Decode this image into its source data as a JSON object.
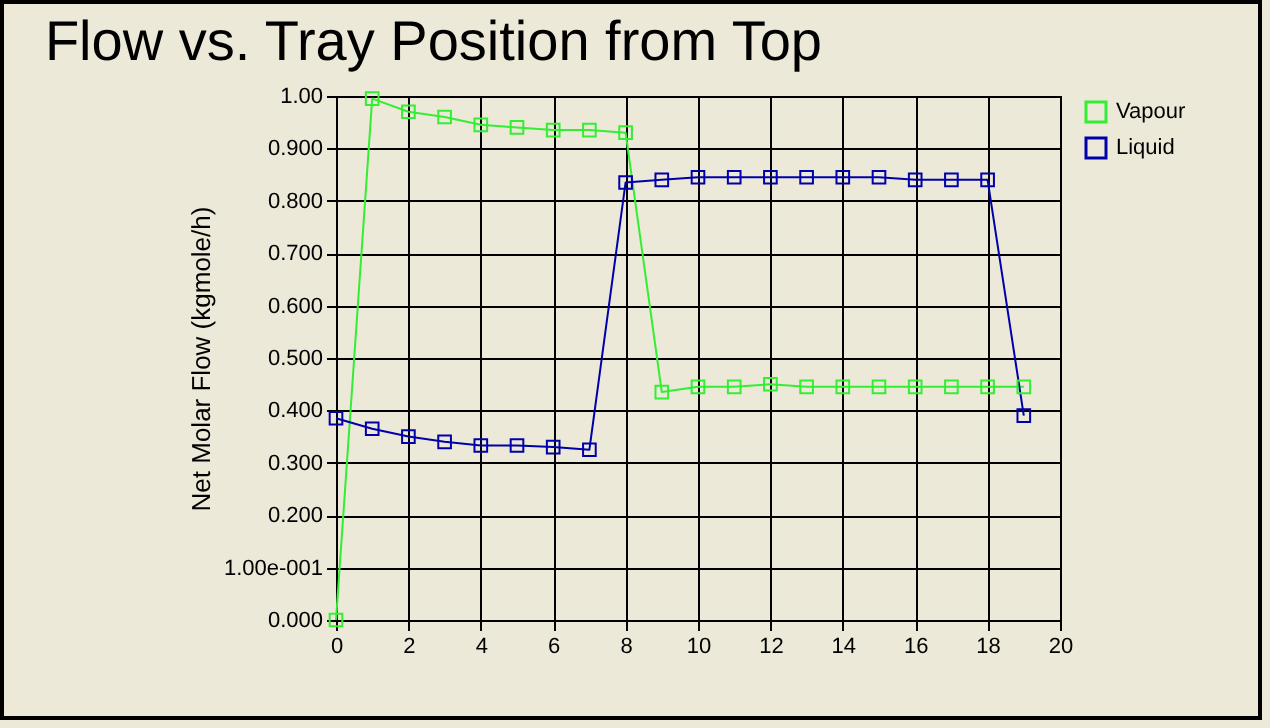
{
  "chart_data": {
    "type": "line",
    "title": "Flow vs. Tray Position from Top",
    "ylabel": "Net Molar Flow (kgmole/h)",
    "x": [
      0,
      1,
      2,
      3,
      4,
      5,
      6,
      7,
      8,
      9,
      10,
      11,
      12,
      13,
      14,
      15,
      16,
      17,
      18,
      19
    ],
    "series": [
      {
        "name": "Vapour",
        "color": "#33ee33",
        "values": [
          0.0,
          0.995,
          0.97,
          0.96,
          0.945,
          0.94,
          0.935,
          0.935,
          0.93,
          0.435,
          0.445,
          0.445,
          0.45,
          0.445,
          0.445,
          0.445,
          0.445,
          0.445,
          0.445,
          0.445
        ]
      },
      {
        "name": "Liquid",
        "color": "#0000aa",
        "values": [
          0.385,
          0.365,
          0.35,
          0.34,
          0.333,
          0.333,
          0.33,
          0.325,
          0.835,
          0.84,
          0.845,
          0.845,
          0.845,
          0.845,
          0.845,
          0.845,
          0.84,
          0.84,
          0.84,
          0.39
        ]
      }
    ],
    "xlim": [
      0,
      20
    ],
    "xticks": [
      0,
      2,
      4,
      6,
      8,
      10,
      12,
      14,
      16,
      18,
      20
    ],
    "ylim": [
      0,
      1
    ],
    "yticks": [
      {
        "value": 0,
        "label": "0.000"
      },
      {
        "value": 0.1,
        "label": "1.00e-001"
      },
      {
        "value": 0.2,
        "label": "0.200"
      },
      {
        "value": 0.3,
        "label": "0.300"
      },
      {
        "value": 0.4,
        "label": "0.400"
      },
      {
        "value": 0.5,
        "label": "0.500"
      },
      {
        "value": 0.6,
        "label": "0.600"
      },
      {
        "value": 0.7,
        "label": "0.700"
      },
      {
        "value": 0.8,
        "label": "0.800"
      },
      {
        "value": 0.9,
        "label": "0.900"
      },
      {
        "value": 1,
        "label": "1.00"
      }
    ],
    "grid": true,
    "legend": "right",
    "marker": "square",
    "line_style": "solid"
  }
}
